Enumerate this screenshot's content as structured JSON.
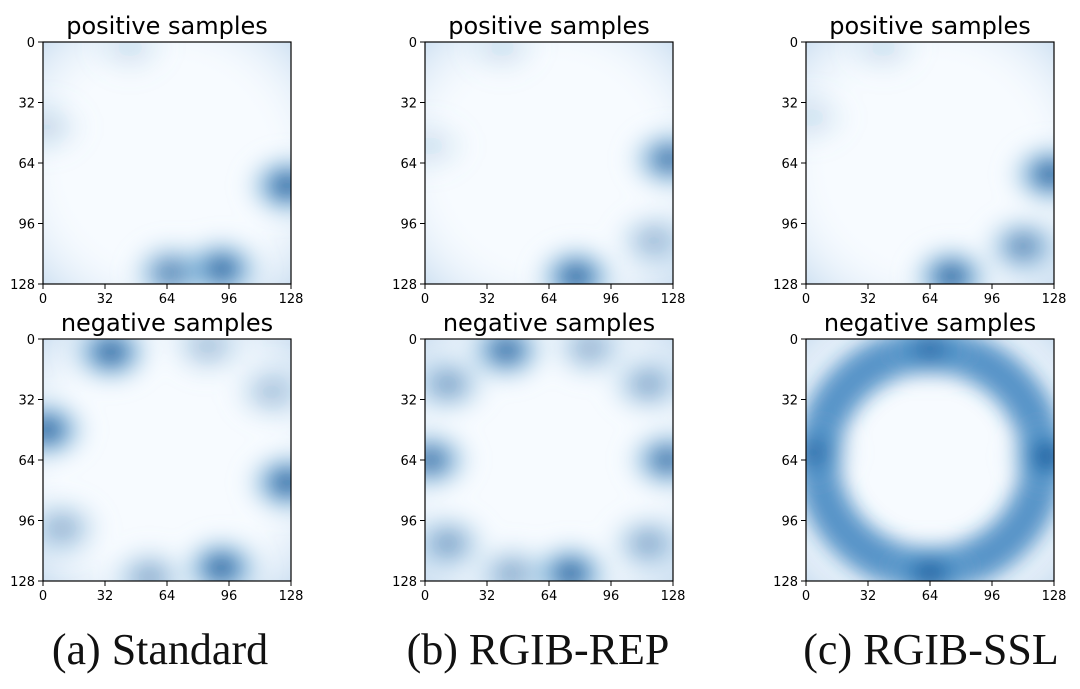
{
  "chart_data": [
    {
      "type": "heatmap",
      "method": "Standard",
      "caption": "(a) Standard",
      "colormap": "Blues",
      "x_ticks": [
        0,
        32,
        64,
        96,
        128
      ],
      "y_ticks": [
        0,
        32,
        64,
        96,
        128
      ],
      "xlim": [
        0,
        128
      ],
      "ylim": [
        0,
        128
      ],
      "panels": [
        {
          "title": "positive samples",
          "hotspots": [
            {
              "x": 126,
              "y": 76,
              "intensity": 0.95
            },
            {
              "x": 92,
              "y": 120,
              "intensity": 0.95
            },
            {
              "x": 66,
              "y": 122,
              "intensity": 0.75
            },
            {
              "x": 2,
              "y": 45,
              "intensity": 0.2
            },
            {
              "x": 45,
              "y": 3,
              "intensity": 0.15
            }
          ]
        },
        {
          "title": "negative samples",
          "hotspots": [
            {
              "x": 35,
              "y": 7,
              "intensity": 0.95
            },
            {
              "x": 2,
              "y": 48,
              "intensity": 0.95
            },
            {
              "x": 126,
              "y": 76,
              "intensity": 0.95
            },
            {
              "x": 92,
              "y": 121,
              "intensity": 0.95
            },
            {
              "x": 55,
              "y": 126,
              "intensity": 0.5
            },
            {
              "x": 85,
              "y": 4,
              "intensity": 0.35
            },
            {
              "x": 10,
              "y": 100,
              "intensity": 0.45
            },
            {
              "x": 118,
              "y": 28,
              "intensity": 0.35
            }
          ]
        }
      ]
    },
    {
      "type": "heatmap",
      "method": "RGIB-REP",
      "caption": "(b) RGIB-REP",
      "colormap": "Blues",
      "x_ticks": [
        0,
        32,
        64,
        96,
        128
      ],
      "y_ticks": [
        0,
        32,
        64,
        96,
        128
      ],
      "xlim": [
        0,
        128
      ],
      "ylim": [
        0,
        128
      ],
      "panels": [
        {
          "title": "positive samples",
          "hotspots": [
            {
              "x": 126,
              "y": 62,
              "intensity": 0.85
            },
            {
              "x": 78,
              "y": 124,
              "intensity": 0.95
            },
            {
              "x": 118,
              "y": 105,
              "intensity": 0.4
            },
            {
              "x": 40,
              "y": 3,
              "intensity": 0.15
            },
            {
              "x": 3,
              "y": 55,
              "intensity": 0.15
            }
          ]
        },
        {
          "title": "negative samples",
          "hotspots": [
            {
              "x": 42,
              "y": 6,
              "intensity": 0.9
            },
            {
              "x": 3,
              "y": 64,
              "intensity": 0.85
            },
            {
              "x": 125,
              "y": 64,
              "intensity": 0.85
            },
            {
              "x": 75,
              "y": 124,
              "intensity": 0.95
            },
            {
              "x": 12,
              "y": 24,
              "intensity": 0.55
            },
            {
              "x": 115,
              "y": 24,
              "intensity": 0.5
            },
            {
              "x": 12,
              "y": 108,
              "intensity": 0.55
            },
            {
              "x": 115,
              "y": 108,
              "intensity": 0.5
            },
            {
              "x": 85,
              "y": 5,
              "intensity": 0.45
            },
            {
              "x": 45,
              "y": 124,
              "intensity": 0.5
            }
          ]
        }
      ]
    },
    {
      "type": "heatmap",
      "method": "RGIB-SSL",
      "caption": "(c) RGIB-SSL",
      "colormap": "Blues",
      "x_ticks": [
        0,
        32,
        64,
        96,
        128
      ],
      "y_ticks": [
        0,
        32,
        64,
        96,
        128
      ],
      "xlim": [
        0,
        128
      ],
      "ylim": [
        0,
        128
      ],
      "panels": [
        {
          "title": "positive samples",
          "hotspots": [
            {
              "x": 126,
              "y": 70,
              "intensity": 0.95
            },
            {
              "x": 75,
              "y": 124,
              "intensity": 0.95
            },
            {
              "x": 112,
              "y": 108,
              "intensity": 0.7
            },
            {
              "x": 3,
              "y": 40,
              "intensity": 0.15
            },
            {
              "x": 40,
              "y": 3,
              "intensity": 0.15
            }
          ]
        },
        {
          "title": "negative samples",
          "ring": {
            "center": [
              64,
              64
            ],
            "radius_x": 58,
            "radius_y": 58,
            "intensity": 0.75
          },
          "hotspots": [
            {
              "x": 125,
              "y": 62,
              "intensity": 0.95
            },
            {
              "x": 64,
              "y": 124,
              "intensity": 0.85
            },
            {
              "x": 4,
              "y": 60,
              "intensity": 0.6
            },
            {
              "x": 64,
              "y": 5,
              "intensity": 0.6
            }
          ]
        }
      ]
    }
  ]
}
